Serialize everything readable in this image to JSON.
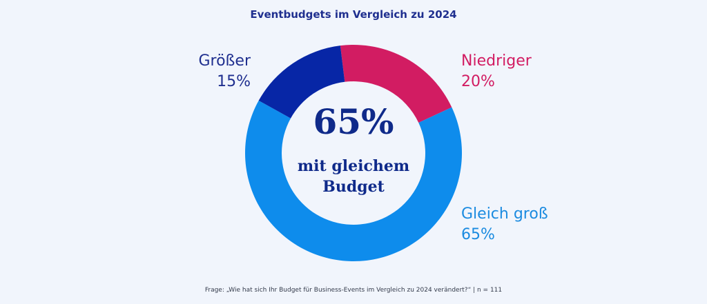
{
  "chart_data": {
    "type": "pie",
    "variant": "donut",
    "title": "Eventbudgets im Vergleich zu 2024",
    "center_text": {
      "value": "65%",
      "line1": "mit gleichem",
      "line2": "Budget"
    },
    "slices": [
      {
        "name": "Niedriger",
        "value": 20,
        "label": "20%",
        "color": "#d21c62"
      },
      {
        "name": "Gleich groß",
        "value": 65,
        "label": "65%",
        "color": "#0e8cec"
      },
      {
        "name": "Größer",
        "value": 15,
        "label": "15%",
        "color": "#0726a6"
      }
    ],
    "start_angle_deg": -7,
    "footnote": "Frage: „Wie hat sich Ihr Budget für Business-Events im Vergleich zu 2024 verändert?“ | n = 111"
  },
  "label_colors": {
    "Niedriger": "#d21c62",
    "Gleich groß": "#1b8be0",
    "Größer": "#1f2f8f"
  }
}
